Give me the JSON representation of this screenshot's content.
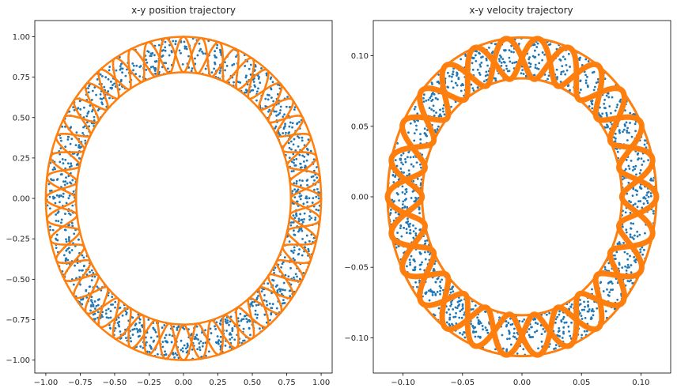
{
  "chart_data": [
    {
      "type": "scatter",
      "title": "x-y position trajectory",
      "xlabel": "",
      "ylabel": "",
      "xlim": [
        -1.08,
        1.08
      ],
      "ylim": [
        -1.08,
        1.1
      ],
      "xticks": [
        -1.0,
        -0.75,
        -0.5,
        -0.25,
        0.0,
        0.25,
        0.5,
        0.75,
        1.0
      ],
      "xtick_labels": [
        "−1.00",
        "−0.75",
        "−0.50",
        "−0.25",
        "0.00",
        "0.25",
        "0.50",
        "0.75",
        "1.00"
      ],
      "yticks": [
        1.0,
        0.75,
        0.5,
        0.25,
        0.0,
        -0.25,
        -0.5,
        -0.75,
        -1.0
      ],
      "ytick_labels": [
        "1.00",
        "0.75",
        "0.50",
        "0.25",
        "0.00",
        "−0.25",
        "−0.50",
        "−0.75",
        "−1.00"
      ],
      "grid": false,
      "series": [
        {
          "color": "#1f77b4",
          "shape": "annulus-scatter",
          "r_outer": 1.0,
          "r_inner": 0.78,
          "points": 1400
        },
        {
          "color": "#ff7f0e",
          "shape": "annulus-weave",
          "r_outer": 1.0,
          "r_inner": 0.78,
          "lobes": 24
        }
      ]
    },
    {
      "type": "scatter",
      "title": "x-y velocity trajectory",
      "xlabel": "",
      "ylabel": "",
      "xlim": [
        -0.125,
        0.125
      ],
      "ylim": [
        -0.125,
        0.125
      ],
      "xticks": [
        -0.1,
        -0.05,
        0.0,
        0.05,
        0.1
      ],
      "xtick_labels": [
        "−0.10",
        "−0.05",
        "0.00",
        "0.05",
        "0.10"
      ],
      "yticks": [
        0.1,
        0.05,
        0.0,
        -0.05,
        -0.1
      ],
      "ytick_labels": [
        "0.10",
        "0.05",
        "0.00",
        "−0.05",
        "−0.10"
      ],
      "grid": false,
      "series": [
        {
          "color": "#1f77b4",
          "shape": "annulus-scatter",
          "r_outer": 0.113,
          "r_inner": 0.084,
          "points": 1600
        },
        {
          "color": "#ff7f0e",
          "shape": "annulus-weave",
          "r_outer": 0.113,
          "r_inner": 0.084,
          "lobes": 13
        }
      ]
    }
  ]
}
